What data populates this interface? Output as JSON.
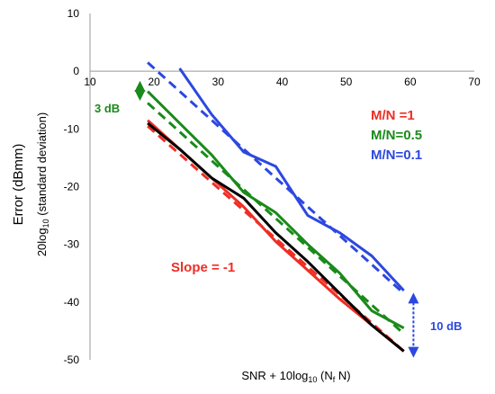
{
  "chart_data": {
    "type": "line",
    "title": "",
    "xlabel_main": "SNR + 10log",
    "xlabel_sub": "10",
    "xlabel_tail": " (N",
    "xlabel_sub2": "f",
    "xlabel_end": " N)",
    "ylabel_outer": "Error (dBmm)",
    "ylabel_inner_main": "20log",
    "ylabel_inner_sub": "10",
    "ylabel_inner_tail": " (standard deviation)",
    "xlim": [
      10,
      70
    ],
    "ylim": [
      -50,
      10
    ],
    "xticks": [
      "10",
      "20",
      "30",
      "40",
      "50",
      "60",
      "70"
    ],
    "yticks": [
      "10",
      "0",
      "-10",
      "-20",
      "-30",
      "-40",
      "-50"
    ],
    "grid": false,
    "legend": [
      {
        "label": "M/N =1",
        "color": "#ee2e24"
      },
      {
        "label": "M/N=0.5",
        "color": "#1a8a1a"
      },
      {
        "label": "M/N=0.1",
        "color": "#2c48e0"
      }
    ],
    "annotations": {
      "slope": "Slope = -1",
      "left_gap": "3 dB",
      "right_gap": "10 dB"
    },
    "series": [
      {
        "color": "#ee2e24",
        "style": "solid",
        "x": [
          19,
          24,
          29,
          34,
          39,
          44,
          49,
          54,
          59
        ],
        "y": [
          -8.5,
          -13.5,
          -18.5,
          -23.5,
          -29.5,
          -34.5,
          -39.5,
          -44,
          -48.5
        ]
      },
      {
        "color": "#ee2e24",
        "style": "dashed",
        "x": [
          19,
          59
        ],
        "y": [
          -9.5,
          -48.5
        ]
      },
      {
        "color": "#1a8a1a",
        "style": "solid",
        "x": [
          19,
          24,
          29,
          34,
          39,
          44,
          49,
          54,
          59
        ],
        "y": [
          -3.5,
          -9,
          -14.5,
          -21,
          -24.5,
          -30,
          -35,
          -41.5,
          -44.5
        ]
      },
      {
        "color": "#1a8a1a",
        "style": "dashed",
        "x": [
          19,
          59
        ],
        "y": [
          -5.5,
          -45.5
        ]
      },
      {
        "color": "#2c48e0",
        "style": "solid",
        "x": [
          24,
          29,
          34,
          39,
          44,
          49,
          54,
          59
        ],
        "y": [
          0.5,
          -7.5,
          -14,
          -16.5,
          -25,
          -28,
          -32,
          -38
        ]
      },
      {
        "color": "#2c48e0",
        "style": "dashed",
        "x": [
          19,
          59
        ],
        "y": [
          1.5,
          -38.5
        ]
      },
      {
        "color": "#000000",
        "style": "solid",
        "x": [
          19,
          24,
          29,
          34,
          39,
          44,
          49,
          54,
          59
        ],
        "y": [
          -9,
          -13.5,
          -18.5,
          -22,
          -28,
          -33,
          -38.5,
          -44,
          -48.5
        ]
      }
    ],
    "gap_markers": [
      {
        "x": 17.8,
        "y1": -2.6,
        "y2": -4.2,
        "color": "#1a8a1a"
      },
      {
        "x": 60.5,
        "y1": -39.3,
        "y2": -48.7,
        "color": "#2c48e0"
      }
    ]
  }
}
